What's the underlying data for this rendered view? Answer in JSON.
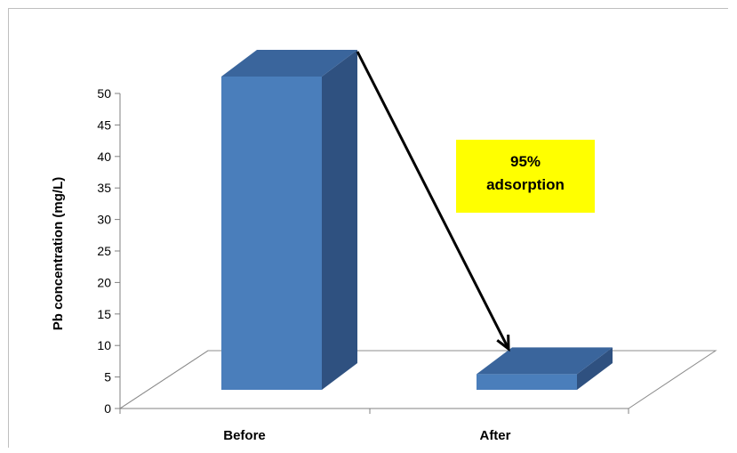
{
  "chart_data": {
    "type": "bar",
    "categories": [
      "Before",
      "After"
    ],
    "values": [
      50,
      2.5
    ],
    "xlabel": "",
    "ylabel": "Pb  concentration (mg/L)",
    "ylim": [
      0,
      50
    ],
    "yticks": [
      0,
      5,
      10,
      15,
      20,
      25,
      30,
      35,
      40,
      45,
      50
    ],
    "grid": false,
    "legend": "none",
    "annotation": {
      "lines": [
        "95%",
        "adsorption"
      ]
    },
    "colors": {
      "bar_front": "#4a7ebb",
      "bar_side": "#2f5180",
      "bar_top": "#3a659c",
      "annotation_bg": "#ffff00"
    }
  }
}
